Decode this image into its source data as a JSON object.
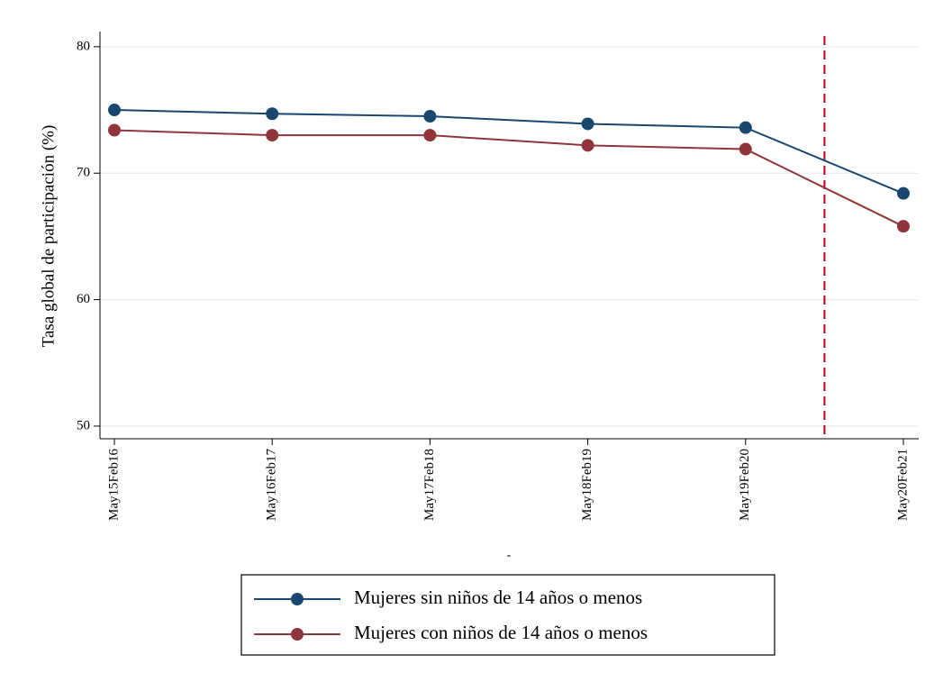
{
  "chart_data": {
    "type": "line",
    "ylabel": "Tasa global de participación (%)",
    "xlabel": "-",
    "categories": [
      "May15Feb16",
      "May16Feb17",
      "May17Feb18",
      "May18Feb19",
      "May19Feb20",
      "May20Feb21"
    ],
    "series": [
      {
        "name": "Mujeres sin niños de 14 años o menos",
        "color": "#1a476f",
        "values": [
          75.0,
          74.7,
          74.5,
          73.9,
          73.6,
          68.4
        ]
      },
      {
        "name": "Mujeres con niños de 14 años o menos",
        "color": "#90353b",
        "values": [
          73.4,
          73.0,
          73.0,
          72.2,
          71.9,
          65.8
        ]
      }
    ],
    "ylim": [
      49,
      81.2
    ],
    "yticks": [
      50,
      60,
      70,
      80
    ],
    "grid": true
  }
}
